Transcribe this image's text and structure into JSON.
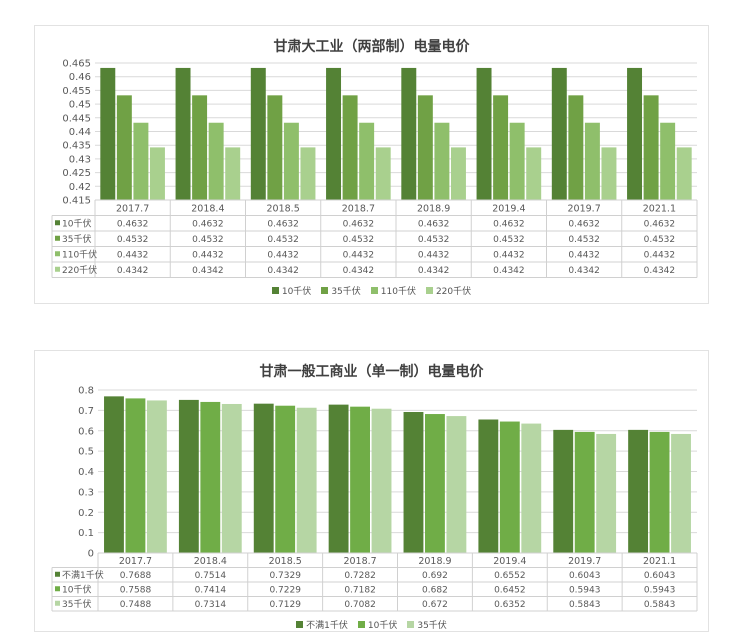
{
  "chart_data": [
    {
      "type": "bar",
      "title": "甘肃大工业（两部制）电量电价",
      "categories": [
        "2017.7",
        "2018.4",
        "2018.5",
        "2018.7",
        "2018.9",
        "2019.4",
        "2019.7",
        "2021.1"
      ],
      "series": [
        {
          "name": "10千伏",
          "color": "#548235",
          "values": [
            0.4632,
            0.4632,
            0.4632,
            0.4632,
            0.4632,
            0.4632,
            0.4632,
            0.4632
          ]
        },
        {
          "name": "35千伏",
          "color": "#70a145",
          "values": [
            0.4532,
            0.4532,
            0.4532,
            0.4532,
            0.4532,
            0.4532,
            0.4532,
            0.4532
          ]
        },
        {
          "name": "110千伏",
          "color": "#8fbf6b",
          "values": [
            0.4432,
            0.4432,
            0.4432,
            0.4432,
            0.4432,
            0.4432,
            0.4432,
            0.4432
          ]
        },
        {
          "name": "220千伏",
          "color": "#a9d08e",
          "values": [
            0.4342,
            0.4342,
            0.4342,
            0.4342,
            0.4342,
            0.4342,
            0.4342,
            0.4342
          ]
        }
      ],
      "table_values": [
        [
          "0.4632",
          "0.4632",
          "0.4632",
          "0.4632",
          "0.4632",
          "0.4632",
          "0.4632",
          "0.4632"
        ],
        [
          "0.4532",
          "0.4532",
          "0.4532",
          "0.4532",
          "0.4532",
          "0.4532",
          "0.4532",
          "0.4532"
        ],
        [
          "0.4432",
          "0.4432",
          "0.4432",
          "0.4432",
          "0.4432",
          "0.4432",
          "0.4432",
          "0.4432"
        ],
        [
          "0.4342",
          "0.4342",
          "0.4342",
          "0.4342",
          "0.4342",
          "0.4342",
          "0.4342",
          "0.4342"
        ]
      ],
      "yticks": [
        "0.465",
        "0.46",
        "0.455",
        "0.45",
        "0.445",
        "0.44",
        "0.435",
        "0.43",
        "0.425",
        "0.42",
        "0.415"
      ],
      "ylim": [
        0.415,
        0.465
      ],
      "grid": true,
      "legend_position": "bottom"
    },
    {
      "type": "bar",
      "title": "甘肃一般工商业（单一制）电量电价",
      "categories": [
        "2017.7",
        "2018.4",
        "2018.5",
        "2018.7",
        "2018.9",
        "2019.4",
        "2019.7",
        "2021.1"
      ],
      "series": [
        {
          "name": "不满1千伏",
          "color": "#548235",
          "values": [
            0.7688,
            0.7514,
            0.7329,
            0.7282,
            0.692,
            0.6552,
            0.6043,
            0.6043
          ]
        },
        {
          "name": "10千伏",
          "color": "#70ad47",
          "values": [
            0.7588,
            0.7414,
            0.7229,
            0.7182,
            0.682,
            0.6452,
            0.5943,
            0.5943
          ]
        },
        {
          "name": "35千伏",
          "color": "#b6d6a4",
          "values": [
            0.7488,
            0.7314,
            0.7129,
            0.7082,
            0.672,
            0.6352,
            0.5843,
            0.5843
          ]
        }
      ],
      "table_values": [
        [
          "0.7688",
          "0.7514",
          "0.7329",
          "0.7282",
          "0.692",
          "0.6552",
          "0.6043",
          "0.6043"
        ],
        [
          "0.7588",
          "0.7414",
          "0.7229",
          "0.7182",
          "0.682",
          "0.6452",
          "0.5943",
          "0.5943"
        ],
        [
          "0.7488",
          "0.7314",
          "0.7129",
          "0.7082",
          "0.672",
          "0.6352",
          "0.5843",
          "0.5843"
        ]
      ],
      "yticks": [
        "0.8",
        "0.7",
        "0.6",
        "0.5",
        "0.4",
        "0.3",
        "0.2",
        "0.1",
        "0"
      ],
      "ylim": [
        0,
        0.8
      ],
      "grid": true,
      "legend_position": "bottom"
    }
  ]
}
